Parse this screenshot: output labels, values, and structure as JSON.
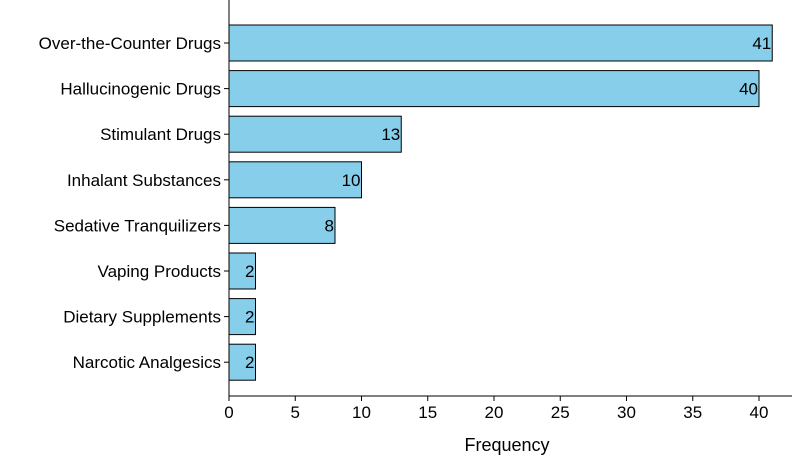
{
  "chart_data": {
    "type": "bar",
    "orientation": "horizontal",
    "categories": [
      "Over-the-Counter Drugs",
      "Hallucinogenic Drugs",
      "Stimulant Drugs",
      "Inhalant Substances",
      "Sedative Tranquilizers",
      "Vaping Products",
      "Dietary Supplements",
      "Narcotic Analgesics"
    ],
    "values": [
      41,
      40,
      13,
      10,
      8,
      2,
      2,
      2
    ],
    "data_labels": [
      "41",
      "40",
      "13",
      "10",
      "8",
      "2",
      "2",
      "2"
    ],
    "title": "",
    "xlabel": "Frequency",
    "ylabel": "",
    "xlim": [
      0,
      42
    ],
    "x_ticks": [
      "0",
      "5",
      "10",
      "15",
      "20",
      "25",
      "30",
      "35",
      "40"
    ],
    "grid": false,
    "legend": "none",
    "bar_color": "#87CEEB",
    "bar_edge_color": "#000000"
  }
}
